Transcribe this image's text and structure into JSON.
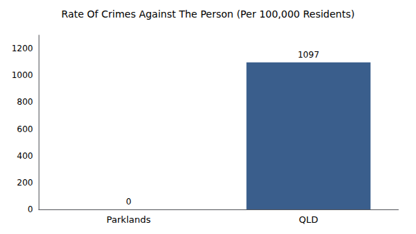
{
  "chart_data": {
    "type": "bar",
    "title": "Rate Of Crimes Against The Person (Per 100,000 Residents)",
    "categories": [
      "Parklands",
      "QLD"
    ],
    "values": [
      0,
      1097
    ],
    "color": "#3a5e8c",
    "ylim": [
      0,
      1300
    ],
    "yticks": [
      0,
      200,
      400,
      600,
      800,
      1000,
      1200
    ],
    "grid": false,
    "data_labels": true
  }
}
